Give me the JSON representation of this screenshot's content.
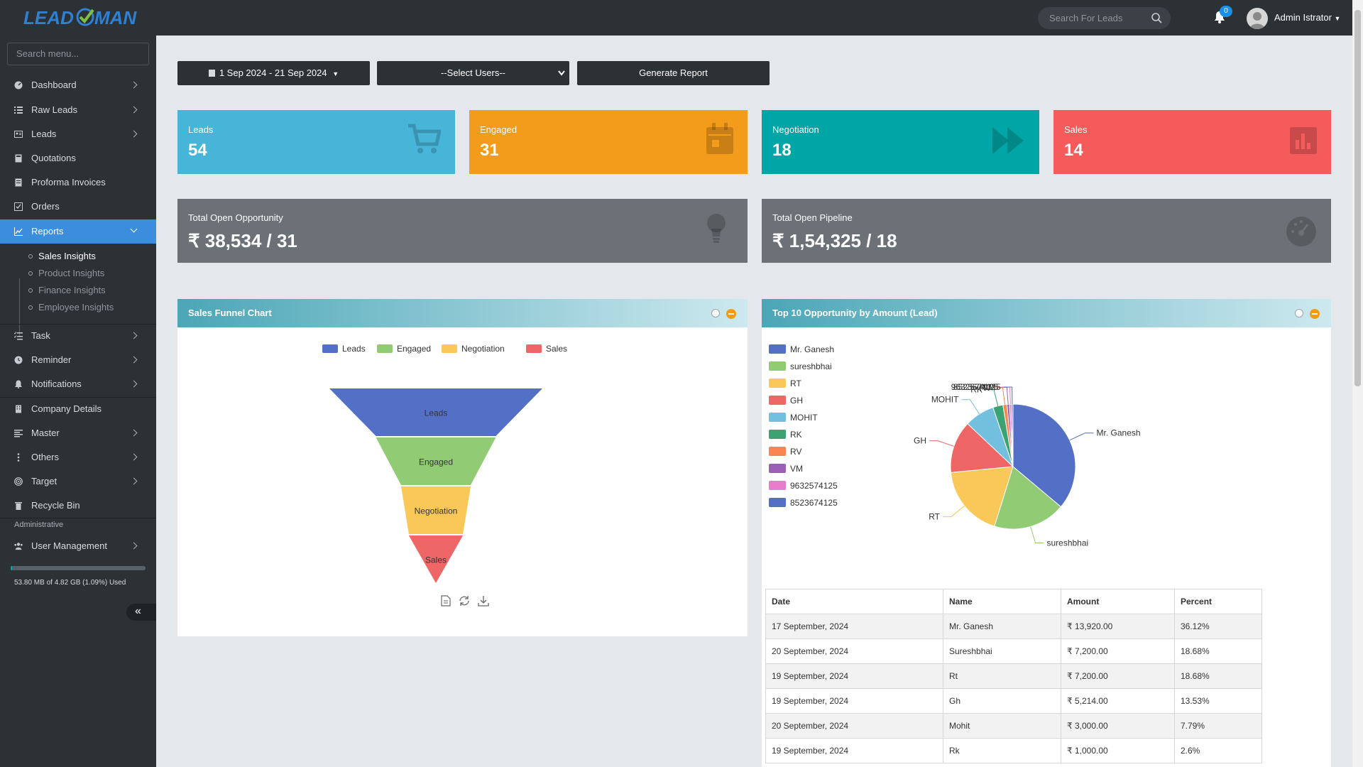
{
  "brand": {
    "logo_text": "LEADMAN"
  },
  "header": {
    "search_placeholder": "Search For Leads",
    "notification_count": "0",
    "user_name": "Admin Istrator"
  },
  "sidebar": {
    "search_placeholder": "Search menu...",
    "items": [
      {
        "label": "Dashboard"
      },
      {
        "label": "Raw Leads"
      },
      {
        "label": "Leads"
      },
      {
        "label": "Quotations"
      },
      {
        "label": "Proforma Invoices"
      },
      {
        "label": "Orders"
      },
      {
        "label": "Reports"
      },
      {
        "label": "Task"
      },
      {
        "label": "Reminder"
      },
      {
        "label": "Notifications"
      },
      {
        "label": "Company Details"
      },
      {
        "label": "Master"
      },
      {
        "label": "Others"
      },
      {
        "label": "Target"
      },
      {
        "label": "Recycle Bin"
      },
      {
        "label": "User Management"
      }
    ],
    "reports_sub": [
      "Sales Insights",
      "Product Insights",
      "Finance Insights",
      "Employee Insights"
    ],
    "section_admin": "Administrative",
    "storage_text": "53.80 MB of 4.82 GB (1.09%) Used",
    "storage_fraction": 0.0109
  },
  "filters": {
    "date_range": "1 Sep 2024 - 21 Sep 2024",
    "users_select": "--Select Users--",
    "generate": "Generate Report"
  },
  "cards": [
    {
      "label": "Leads",
      "value": "54",
      "color": "#47b5d8"
    },
    {
      "label": "Engaged",
      "value": "31",
      "color": "#f39c1b"
    },
    {
      "label": "Negotiation",
      "value": "18",
      "color": "#00a6a6"
    },
    {
      "label": "Sales",
      "value": "14",
      "color": "#f55b5b"
    }
  ],
  "totals": [
    {
      "label": "Total Open Opportunity",
      "value": "₹ 38,534 / 31"
    },
    {
      "label": "Total Open Pipeline",
      "value": "₹ 1,54,325 / 18"
    }
  ],
  "funnel_panel": {
    "title": "Sales Funnel Chart"
  },
  "pie_panel": {
    "title": "Top 10 Opportunity by Amount (Lead)"
  },
  "chart_data": [
    {
      "type": "funnel",
      "categories": [
        "Leads",
        "Engaged",
        "Negotiation",
        "Sales"
      ],
      "values": [
        54,
        31,
        18,
        14
      ],
      "colors": [
        "#5470c6",
        "#91cc75",
        "#fac858",
        "#ee6666"
      ],
      "legend": "top-center"
    },
    {
      "type": "pie",
      "categories": [
        "Mr. Ganesh",
        "sureshbhai",
        "RT",
        "GH",
        "MOHIT",
        "RK",
        "RV",
        "VM",
        "9632574125",
        "8523674125"
      ],
      "values": [
        13920,
        7200,
        7200,
        5214,
        3000,
        1000,
        400,
        250,
        200,
        150
      ],
      "colors": [
        "#5470c6",
        "#91cc75",
        "#fac858",
        "#ee6666",
        "#73c0de",
        "#3ba272",
        "#fc8452",
        "#9a60b4",
        "#ea7ccc",
        "#5470c6"
      ],
      "legend": "left"
    }
  ],
  "table": {
    "headers": [
      "Date",
      "Name",
      "Amount",
      "Percent"
    ],
    "rows": [
      [
        "17 September, 2024",
        "Mr. Ganesh",
        "₹ 13,920.00",
        "36.12%"
      ],
      [
        "20 September, 2024",
        "Sureshbhai",
        "₹ 7,200.00",
        "18.68%"
      ],
      [
        "19 September, 2024",
        "Rt",
        "₹ 7,200.00",
        "18.68%"
      ],
      [
        "19 September, 2024",
        "Gh",
        "₹ 5,214.00",
        "13.53%"
      ],
      [
        "20 September, 2024",
        "Mohit",
        "₹ 3,000.00",
        "7.79%"
      ],
      [
        "19 September, 2024",
        "Rk",
        "₹ 1,000.00",
        "2.6%"
      ]
    ]
  }
}
